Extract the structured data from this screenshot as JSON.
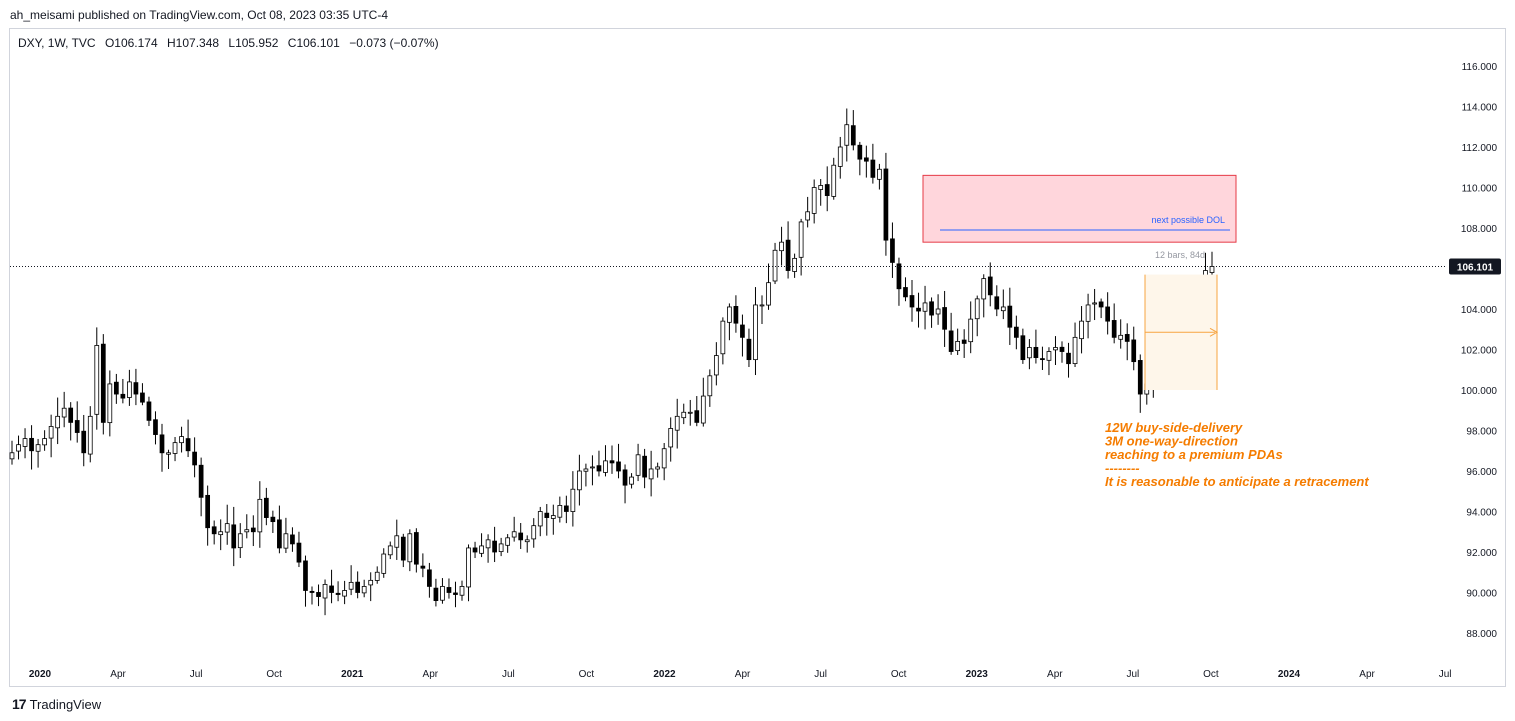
{
  "header": {
    "caption": "ah_meisami published on TradingView.com, Oct 08, 2023 03:35 UTC-4"
  },
  "legend": {
    "symbol": "DXY, 1W, TVC",
    "open": "O106.174",
    "high": "H107.348",
    "low": "L105.952",
    "close": "C106.101",
    "change": "−0.073 (−0.07%)"
  },
  "branding": {
    "logo_mark": "17",
    "name": "TradingView"
  },
  "chart_data": {
    "type": "candlestick",
    "symbol": "DXY",
    "interval": "1W",
    "y_axis": {
      "range": [
        87.0,
        117.0
      ],
      "ticks": [
        "116.000",
        "114.000",
        "112.000",
        "110.000",
        "108.000",
        "106.000",
        "104.000",
        "102.000",
        "100.000",
        "98.000",
        "96.000",
        "94.000",
        "92.000",
        "90.000",
        "88.000"
      ],
      "side": "right"
    },
    "x_axis": {
      "labels": [
        {
          "text": "2020",
          "year": 2020,
          "month": 1,
          "bold": true
        },
        {
          "text": "Apr",
          "year": 2020,
          "month": 4
        },
        {
          "text": "Jul",
          "year": 2020,
          "month": 7
        },
        {
          "text": "Oct",
          "year": 2020,
          "month": 10
        },
        {
          "text": "2021",
          "year": 2021,
          "month": 1,
          "bold": true
        },
        {
          "text": "Apr",
          "year": 2021,
          "month": 4
        },
        {
          "text": "Jul",
          "year": 2021,
          "month": 7
        },
        {
          "text": "Oct",
          "year": 2021,
          "month": 10
        },
        {
          "text": "2022",
          "year": 2022,
          "month": 1,
          "bold": true
        },
        {
          "text": "Apr",
          "year": 2022,
          "month": 4
        },
        {
          "text": "Jul",
          "year": 2022,
          "month": 7
        },
        {
          "text": "Oct",
          "year": 2022,
          "month": 10
        },
        {
          "text": "2023",
          "year": 2023,
          "month": 1,
          "bold": true
        },
        {
          "text": "Apr",
          "year": 2023,
          "month": 4
        },
        {
          "text": "Jul",
          "year": 2023,
          "month": 7
        },
        {
          "text": "Oct",
          "year": 2023,
          "month": 10
        },
        {
          "text": "2024",
          "year": 2024,
          "month": 1,
          "bold": true
        },
        {
          "text": "Apr",
          "year": 2024,
          "month": 4
        },
        {
          "text": "Jul",
          "year": 2024,
          "month": 7
        }
      ]
    },
    "last_price": {
      "value": 106.101,
      "label": "106.101"
    },
    "series_closes": [
      96.9,
      97.3,
      97.6,
      97.0,
      97.3,
      97.6,
      98.2,
      98.7,
      99.1,
      98.4,
      97.9,
      96.9,
      98.7,
      102.2,
      98.4,
      100.3,
      99.8,
      99.6,
      100.4,
      99.8,
      99.4,
      98.5,
      97.8,
      96.9,
      96.9,
      97.4,
      97.7,
      97.0,
      96.3,
      94.7,
      93.2,
      92.9,
      93.0,
      93.4,
      92.2,
      92.9,
      93.1,
      93.0,
      94.6,
      93.7,
      93.5,
      92.2,
      92.9,
      92.4,
      91.5,
      90.1,
      90.0,
      89.8,
      90.4,
      90.0,
      89.9,
      90.1,
      90.5,
      90.0,
      90.3,
      90.6,
      91.0,
      91.9,
      92.3,
      92.8,
      91.6,
      92.9,
      91.4,
      91.2,
      90.3,
      89.6,
      90.3,
      90.0,
      89.9,
      90.3,
      92.2,
      92.0,
      92.3,
      92.6,
      92.0,
      92.4,
      92.7,
      93.0,
      92.6,
      92.6,
      93.3,
      94.0,
      93.7,
      93.8,
      94.3,
      94.0,
      95.1,
      96.0,
      96.1,
      96.2,
      96.0,
      96.5,
      96.4,
      96.0,
      95.3,
      95.7,
      96.8,
      95.7,
      96.1,
      96.2,
      97.1,
      98.1,
      98.7,
      98.9,
      98.9,
      98.4,
      99.7,
      100.7,
      101.7,
      103.4,
      104.1,
      103.3,
      102.6,
      101.5,
      104.2,
      104.2,
      105.3,
      106.9,
      107.3,
      105.9,
      106.5,
      108.3,
      108.8,
      110.0,
      110.1,
      109.6,
      111.1,
      112.0,
      113.1,
      112.1,
      111.4,
      111.3,
      110.5,
      110.9,
      107.4,
      106.3,
      105.0,
      104.6,
      104.1,
      103.9,
      104.3,
      103.7,
      104.0,
      103.0,
      101.9,
      102.4,
      102.3,
      103.5,
      104.5,
      105.5,
      104.7,
      104.0,
      104.1,
      103.1,
      102.6,
      101.5,
      102.1,
      101.6,
      101.5,
      101.9,
      102.1,
      101.9,
      101.3,
      102.6,
      103.4,
      104.2,
      104.3,
      104.1,
      103.4,
      102.6,
      102.7,
      102.4,
      101.4,
      99.8,
      100.3,
      101.9,
      102.0,
      102.8,
      103.2,
      103.9,
      104.3,
      105.1,
      105.2,
      105.9,
      106.101
    ],
    "annotations": [
      {
        "type": "rectangle",
        "name": "premium-zone",
        "price_from": 107.3,
        "price_to": 110.6,
        "fill": "#ffd6dc",
        "border": "#e53945"
      },
      {
        "type": "line",
        "name": "dol-line",
        "price": 107.9,
        "color": "#2962ff",
        "label": "next possible DOL"
      },
      {
        "type": "date-price-range",
        "name": "range-box",
        "price_from": 100.0,
        "price_to": 105.7,
        "fill": "#fef6ea",
        "border": "#f7a440",
        "label": "12 bars, 84d"
      },
      {
        "type": "text",
        "color": "#f57c00",
        "lines": [
          "12W buy-side-delivery",
          "3M one-way-direction",
          "reaching to a premium PDAs",
          "--------",
          "It is reasonable to anticipate a retracement"
        ]
      }
    ],
    "colors": {
      "up_body": "#ffffff",
      "down_body": "#000000",
      "wick": "#000000",
      "grid": "none",
      "price_label_bg": "#131722"
    }
  }
}
